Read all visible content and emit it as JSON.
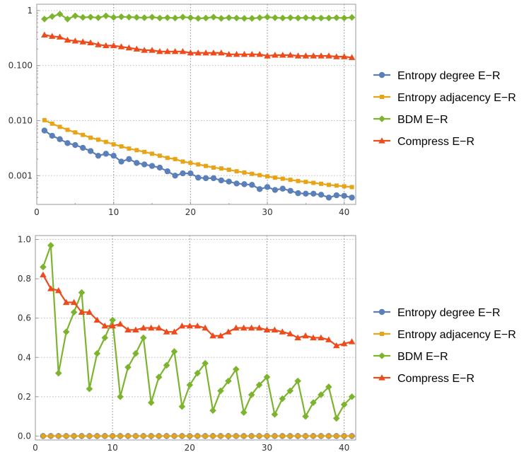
{
  "colors": {
    "entropy_degree": "#5B7FB8",
    "entropy_adjacency": "#E8A416",
    "bdm": "#7DB42E",
    "compress": "#EE4B1C"
  },
  "chart_data": [
    {
      "type": "line",
      "title": "",
      "xlabel": "",
      "ylabel": "",
      "yscale": "log",
      "xlim": [
        0,
        41.5
      ],
      "ylim": [
        0.0003,
        1.3
      ],
      "x_ticks": [
        "0",
        "10",
        "20",
        "30",
        "40"
      ],
      "y_ticks": [
        "0.001",
        "0.010",
        "0.100",
        "1"
      ],
      "grid": true,
      "legend_position": "right",
      "x": [
        1,
        2,
        3,
        4,
        5,
        6,
        7,
        8,
        9,
        10,
        11,
        12,
        13,
        14,
        15,
        16,
        17,
        18,
        19,
        20,
        21,
        22,
        23,
        24,
        25,
        26,
        27,
        28,
        29,
        30,
        31,
        32,
        33,
        34,
        35,
        36,
        37,
        38,
        39,
        40,
        41
      ],
      "series": [
        {
          "name": "Entropy degree E−R",
          "marker": "circle",
          "values": [
            0.0066,
            0.0053,
            0.0046,
            0.0039,
            0.0036,
            0.0032,
            0.0028,
            0.0023,
            0.0025,
            0.0023,
            0.0018,
            0.002,
            0.0017,
            0.0016,
            0.0015,
            0.0014,
            0.0012,
            0.001,
            0.0011,
            0.0011,
            0.00092,
            0.0009,
            0.0009,
            0.00082,
            0.00078,
            0.00072,
            0.0007,
            0.00068,
            0.00057,
            0.00062,
            0.00055,
            0.00058,
            0.00053,
            0.00048,
            0.00047,
            0.00047,
            0.00045,
            0.0004,
            0.00044,
            0.00043,
            0.0004
          ]
        },
        {
          "name": "Entropy adjacency E−R",
          "marker": "square",
          "values": [
            0.0102,
            0.0088,
            0.0077,
            0.0068,
            0.0061,
            0.0055,
            0.0049,
            0.0045,
            0.0041,
            0.0037,
            0.0034,
            0.0031,
            0.0029,
            0.0027,
            0.0025,
            0.0023,
            0.0021,
            0.002,
            0.0018,
            0.0017,
            0.0016,
            0.0015,
            0.0014,
            0.00135,
            0.00128,
            0.0012,
            0.00114,
            0.00108,
            0.00102,
            0.00097,
            0.00092,
            0.00088,
            0.00084,
            0.0008,
            0.00077,
            0.00074,
            0.00071,
            0.00068,
            0.00066,
            0.00064,
            0.00062
          ]
        },
        {
          "name": "BDM E−R",
          "marker": "diamond",
          "values": [
            0.7,
            0.78,
            0.86,
            0.7,
            0.8,
            0.75,
            0.76,
            0.74,
            0.8,
            0.75,
            0.77,
            0.76,
            0.75,
            0.74,
            0.76,
            0.73,
            0.74,
            0.73,
            0.76,
            0.74,
            0.72,
            0.73,
            0.76,
            0.72,
            0.74,
            0.73,
            0.72,
            0.72,
            0.74,
            0.76,
            0.74,
            0.73,
            0.74,
            0.73,
            0.74,
            0.73,
            0.73,
            0.73,
            0.74,
            0.73,
            0.75
          ]
        },
        {
          "name": "Compress E−R",
          "marker": "triangle",
          "values": [
            0.36,
            0.34,
            0.33,
            0.29,
            0.28,
            0.27,
            0.26,
            0.24,
            0.23,
            0.23,
            0.22,
            0.21,
            0.2,
            0.19,
            0.19,
            0.18,
            0.18,
            0.18,
            0.18,
            0.17,
            0.17,
            0.17,
            0.17,
            0.17,
            0.16,
            0.16,
            0.16,
            0.16,
            0.16,
            0.15,
            0.155,
            0.155,
            0.155,
            0.15,
            0.15,
            0.15,
            0.15,
            0.15,
            0.145,
            0.145,
            0.14
          ]
        }
      ]
    },
    {
      "type": "line",
      "title": "",
      "xlabel": "",
      "ylabel": "",
      "xlim": [
        0,
        41.5
      ],
      "ylim": [
        -0.02,
        1.02
      ],
      "x_ticks": [
        "0",
        "10",
        "20",
        "30",
        "40"
      ],
      "y_ticks": [
        "0.0",
        "0.2",
        "0.4",
        "0.6",
        "0.8",
        "1.0"
      ],
      "grid": true,
      "legend_position": "right",
      "x": [
        1,
        2,
        3,
        4,
        5,
        6,
        7,
        8,
        9,
        10,
        11,
        12,
        13,
        14,
        15,
        16,
        17,
        18,
        19,
        20,
        21,
        22,
        23,
        24,
        25,
        26,
        27,
        28,
        29,
        30,
        31,
        32,
        33,
        34,
        35,
        36,
        37,
        38,
        39,
        40,
        41
      ],
      "series": [
        {
          "name": "Entropy degree E−R",
          "marker": "circle",
          "values": [
            0,
            0,
            0,
            0,
            0,
            0,
            0,
            0,
            0,
            0,
            0,
            0,
            0,
            0,
            0,
            0,
            0,
            0,
            0,
            0,
            0,
            0,
            0,
            0,
            0,
            0,
            0,
            0,
            0,
            0,
            0,
            0,
            0,
            0,
            0,
            0,
            0,
            0,
            0,
            0,
            0
          ]
        },
        {
          "name": "Entropy adjacency E−R",
          "marker": "square",
          "values": [
            0,
            0,
            0,
            0,
            0,
            0,
            0,
            0,
            0,
            0,
            0,
            0,
            0,
            0,
            0,
            0,
            0,
            0,
            0,
            0,
            0,
            0,
            0,
            0,
            0,
            0,
            0,
            0,
            0,
            0,
            0,
            0,
            0,
            0,
            0,
            0,
            0,
            0,
            0,
            0,
            0
          ]
        },
        {
          "name": "BDM E−R",
          "marker": "diamond",
          "values": [
            0.86,
            0.97,
            0.32,
            0.53,
            0.63,
            0.73,
            0.24,
            0.42,
            0.5,
            0.59,
            0.2,
            0.35,
            0.42,
            0.5,
            0.17,
            0.3,
            0.36,
            0.43,
            0.15,
            0.26,
            0.32,
            0.37,
            0.13,
            0.23,
            0.28,
            0.34,
            0.12,
            0.21,
            0.26,
            0.3,
            0.11,
            0.19,
            0.23,
            0.28,
            0.1,
            0.17,
            0.21,
            0.25,
            0.09,
            0.16,
            0.2
          ]
        },
        {
          "name": "Compress E−R",
          "marker": "triangle",
          "values": [
            0.82,
            0.75,
            0.74,
            0.68,
            0.68,
            0.63,
            0.63,
            0.59,
            0.56,
            0.56,
            0.57,
            0.54,
            0.54,
            0.55,
            0.55,
            0.55,
            0.53,
            0.53,
            0.56,
            0.56,
            0.56,
            0.55,
            0.51,
            0.51,
            0.53,
            0.55,
            0.55,
            0.55,
            0.55,
            0.54,
            0.54,
            0.53,
            0.52,
            0.5,
            0.51,
            0.5,
            0.5,
            0.49,
            0.46,
            0.47,
            0.48
          ]
        }
      ]
    }
  ]
}
